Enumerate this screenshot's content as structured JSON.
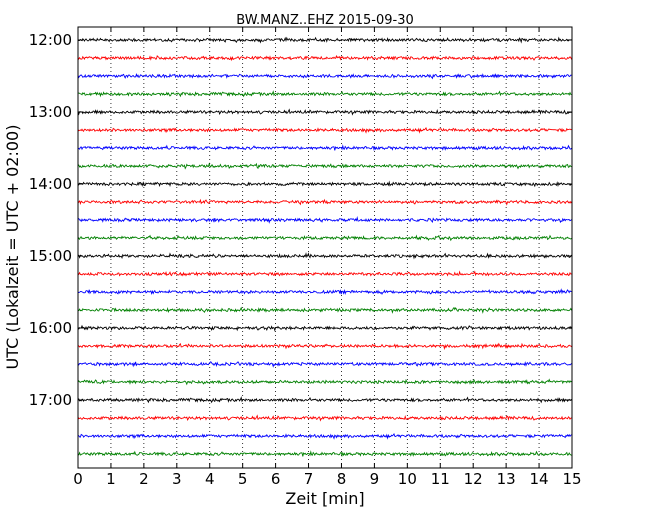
{
  "chart_data": {
    "type": "line",
    "title": "BW.MANZ..EHZ 2015-09-30",
    "xlabel": "Zeit  [min]",
    "ylabel": "UTC (Lokalzeit = UTC + 02:00)",
    "xlim": [
      0,
      15
    ],
    "x_ticks": [
      "0",
      "1",
      "2",
      "3",
      "4",
      "5",
      "6",
      "7",
      "8",
      "9",
      "10",
      "11",
      "12",
      "13",
      "14",
      "15"
    ],
    "y_ticks": [
      "12:00",
      "13:00",
      "14:00",
      "15:00",
      "16:00",
      "17:00"
    ],
    "grid": "vertical dotted",
    "colors": [
      "#000000",
      "#ff0000",
      "#0000ff",
      "#008000"
    ],
    "traces": [
      {
        "start": "12:00",
        "color": "#000000"
      },
      {
        "start": "12:15",
        "color": "#ff0000"
      },
      {
        "start": "12:30",
        "color": "#0000ff"
      },
      {
        "start": "12:45",
        "color": "#008000"
      },
      {
        "start": "13:00",
        "color": "#000000"
      },
      {
        "start": "13:15",
        "color": "#ff0000"
      },
      {
        "start": "13:30",
        "color": "#0000ff"
      },
      {
        "start": "13:45",
        "color": "#008000"
      },
      {
        "start": "14:00",
        "color": "#000000"
      },
      {
        "start": "14:15",
        "color": "#ff0000"
      },
      {
        "start": "14:30",
        "color": "#0000ff"
      },
      {
        "start": "14:45",
        "color": "#008000"
      },
      {
        "start": "15:00",
        "color": "#000000"
      },
      {
        "start": "15:15",
        "color": "#ff0000"
      },
      {
        "start": "15:30",
        "color": "#0000ff"
      },
      {
        "start": "15:45",
        "color": "#008000"
      },
      {
        "start": "16:00",
        "color": "#000000"
      },
      {
        "start": "16:15",
        "color": "#ff0000"
      },
      {
        "start": "16:30",
        "color": "#0000ff"
      },
      {
        "start": "16:45",
        "color": "#008000"
      },
      {
        "start": "17:00",
        "color": "#000000"
      },
      {
        "start": "17:15",
        "color": "#ff0000"
      },
      {
        "start": "17:30",
        "color": "#0000ff"
      },
      {
        "start": "17:45",
        "color": "#008000"
      }
    ]
  }
}
